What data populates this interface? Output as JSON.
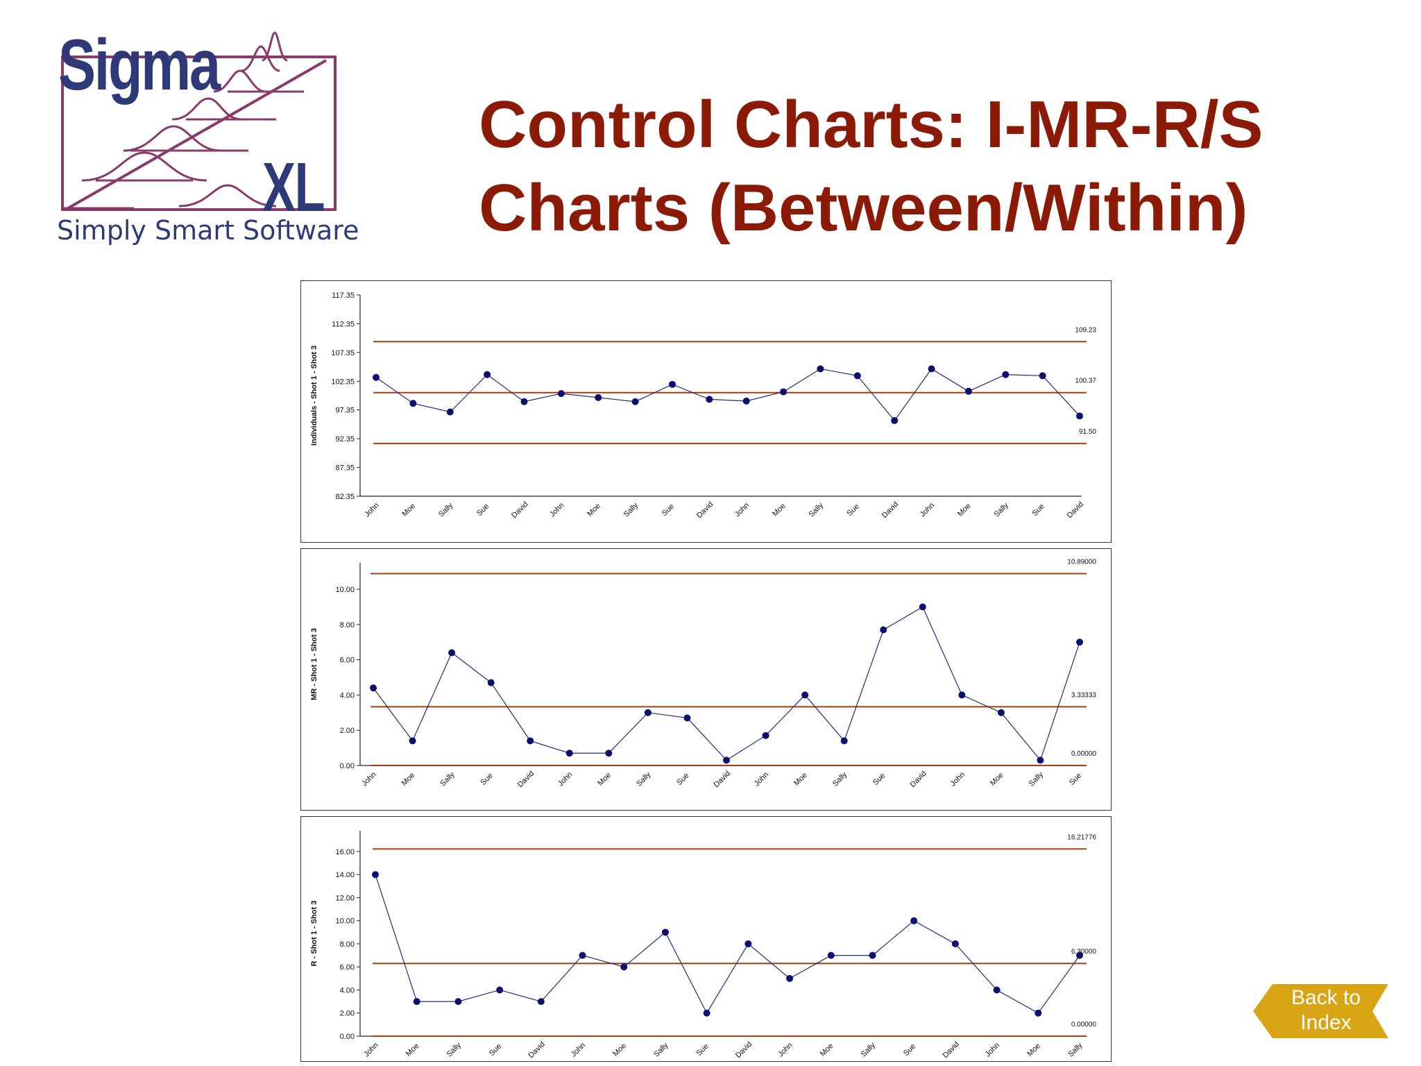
{
  "logo": {
    "brand": "Sigma",
    "suffix": "XL",
    "tagline": "Simply Smart Software"
  },
  "title": {
    "line1": "Control Charts: I-MR-R/S",
    "line2": "Charts (Between/Within)"
  },
  "back_button": {
    "line1": "Back to",
    "line2": "Index"
  },
  "colors": {
    "title": "#8b1a06",
    "limit_line": "#b03a0a",
    "series": "#1f2a7a",
    "point": "#0b1070",
    "logo": "#2e3a78",
    "logo_frame": "#8a3a6a",
    "back_button": "#d9a514"
  },
  "chart_data": [
    {
      "type": "line",
      "ylabel": "Individuals - Shot 1 - Shot 3",
      "xlabel": "",
      "y_ticks": [
        82.35,
        87.35,
        92.35,
        97.35,
        102.35,
        107.35,
        112.35,
        117.35
      ],
      "y_tick_labels": [
        "82.35",
        "87.35",
        "92.35",
        "97.35",
        "102.35",
        "107.35",
        "112.35",
        "117.35"
      ],
      "ylim": [
        82.35,
        117.35
      ],
      "categories": [
        "John",
        "Moe",
        "Sally",
        "Sue",
        "David",
        "John",
        "Moe",
        "Sally",
        "Sue",
        "David",
        "John",
        "Moe",
        "Sally",
        "Sue",
        "David",
        "John",
        "Moe",
        "Sally",
        "Sue",
        "David"
      ],
      "values": [
        103.0,
        98.5,
        97.0,
        103.5,
        98.8,
        100.2,
        99.5,
        98.8,
        101.8,
        99.2,
        98.9,
        100.5,
        104.5,
        103.3,
        95.5,
        104.5,
        100.6,
        103.5,
        103.3,
        96.3
      ],
      "limits": [
        {
          "value": 109.23,
          "label": "109.23"
        },
        {
          "value": 100.37,
          "label": "100.37"
        },
        {
          "value": 91.5,
          "label": "91.50"
        }
      ]
    },
    {
      "type": "line",
      "ylabel": "MR - Shot 1 - Shot 3",
      "xlabel": "",
      "y_ticks": [
        0,
        2,
        4,
        6,
        8,
        10
      ],
      "y_tick_labels": [
        "0.00",
        "2.00",
        "4.00",
        "6.00",
        "8.00",
        "10.00"
      ],
      "ylim": [
        0,
        11.5
      ],
      "categories": [
        "John",
        "Moe",
        "Sally",
        "Sue",
        "David",
        "John",
        "Moe",
        "Sally",
        "Sue",
        "David",
        "John",
        "Moe",
        "Sally",
        "Sue",
        "David",
        "John",
        "Moe",
        "Sally",
        "Sue"
      ],
      "values": [
        4.4,
        1.4,
        6.4,
        4.7,
        1.4,
        0.7,
        0.7,
        3.0,
        2.7,
        0.3,
        1.7,
        4.0,
        1.4,
        7.7,
        9.0,
        4.0,
        3.0,
        0.3,
        7.0
      ],
      "limits": [
        {
          "value": 10.89,
          "label": "10.89000"
        },
        {
          "value": 3.33333,
          "label": "3.33333"
        },
        {
          "value": 0.0,
          "label": "0.00000"
        }
      ]
    },
    {
      "type": "line",
      "ylabel": "R - Shot 1 - Shot 3",
      "xlabel": "",
      "y_ticks": [
        0,
        2,
        4,
        6,
        8,
        10,
        12,
        14,
        16
      ],
      "y_tick_labels": [
        "0.00",
        "2.00",
        "4.00",
        "6.00",
        "8.00",
        "10.00",
        "12.00",
        "14.00",
        "16.00"
      ],
      "ylim": [
        0,
        17.8
      ],
      "categories": [
        "John",
        "Moe",
        "Sally",
        "Sue",
        "David",
        "John",
        "Moe",
        "Sally",
        "Sue",
        "David",
        "John",
        "Moe",
        "Sally",
        "Sue",
        "David",
        "John",
        "Moe",
        "Sally"
      ],
      "values": [
        14,
        3,
        3,
        4,
        3,
        7,
        6,
        9,
        2,
        8,
        5,
        7,
        7,
        10,
        8,
        4,
        2,
        7
      ],
      "limits": [
        {
          "value": 16.21776,
          "label": "16.21776"
        },
        {
          "value": 6.3,
          "label": "6.30000"
        },
        {
          "value": 0.0,
          "label": "0.00000"
        }
      ]
    }
  ]
}
